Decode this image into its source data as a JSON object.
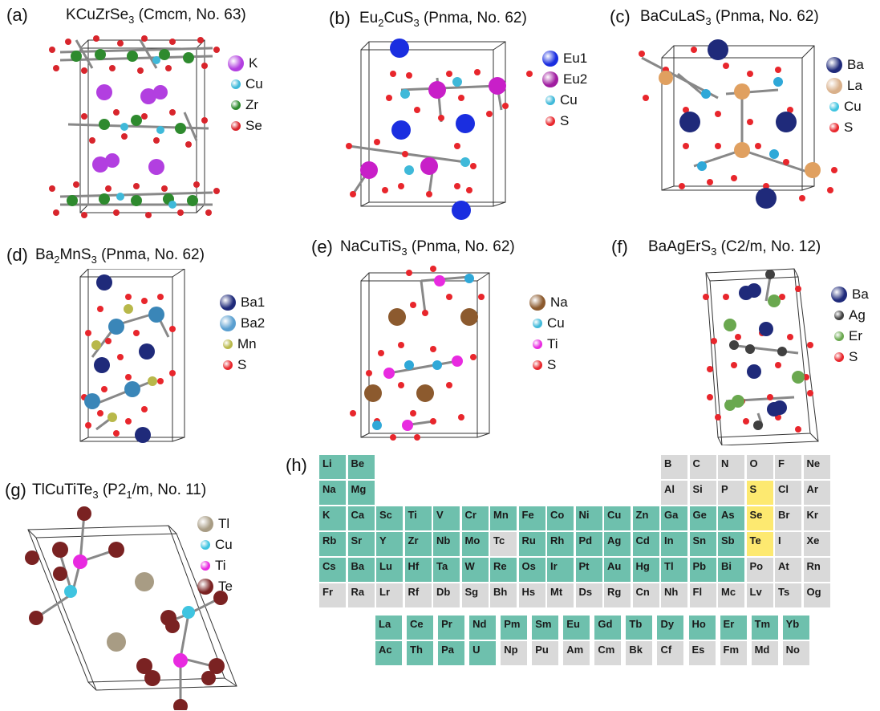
{
  "panels": [
    {
      "id": "a",
      "label": "(a)",
      "formula": [
        [
          "KCuZrSe",
          ""
        ],
        [
          "3",
          "sub"
        ]
      ],
      "space_group": " (Cmcm, No. 63)",
      "legend": [
        {
          "el": "K",
          "color": "#b23fe0"
        },
        {
          "el": "Cu",
          "color": "#3fb9d9"
        },
        {
          "el": "Zr",
          "color": "#2e8a2e"
        },
        {
          "el": "Se",
          "color": "#d8252c"
        }
      ]
    },
    {
      "id": "b",
      "label": "(b)",
      "formula": [
        [
          "Eu",
          ""
        ],
        [
          "2",
          "sub"
        ],
        [
          "CuS",
          ""
        ],
        [
          "3",
          "sub"
        ]
      ],
      "space_group": " (Pnma, No. 62)",
      "legend": [
        {
          "el": "Eu1",
          "color": "#1a2ee0"
        },
        {
          "el": "Eu2",
          "color": "#a01da0"
        },
        {
          "el": "Cu",
          "color": "#3fb9d9"
        },
        {
          "el": "S",
          "color": "#e8262c"
        }
      ]
    },
    {
      "id": "c",
      "label": "(c)",
      "formula": [
        [
          "BaCuLaS",
          ""
        ],
        [
          "3",
          "sub"
        ]
      ],
      "space_group": " (Pnma, No. 62)",
      "legend": [
        {
          "el": "Ba",
          "color": "#1f2a7a"
        },
        {
          "el": "La",
          "color": "#d9b08a"
        },
        {
          "el": "Cu",
          "color": "#3fc4e0"
        },
        {
          "el": "S",
          "color": "#e8262c"
        }
      ]
    },
    {
      "id": "d",
      "label": "(d)",
      "formula": [
        [
          "Ba",
          ""
        ],
        [
          "2",
          "sub"
        ],
        [
          "MnS",
          ""
        ],
        [
          "3",
          "sub"
        ]
      ],
      "space_group": " (Pnma,  No. 62)",
      "legend": [
        {
          "el": "Ba1",
          "color": "#1f2a7a"
        },
        {
          "el": "Ba2",
          "color": "#5a9fd0"
        },
        {
          "el": "Mn",
          "color": "#b8b84a"
        },
        {
          "el": "S",
          "color": "#e8262c"
        }
      ]
    },
    {
      "id": "e",
      "label": "(e)",
      "formula": [
        [
          "NaCuTiS",
          ""
        ],
        [
          "3",
          "sub"
        ]
      ],
      "space_group": " (Pnma, No. 62)",
      "legend": [
        {
          "el": "Na",
          "color": "#8c5a2e"
        },
        {
          "el": "Cu",
          "color": "#3fb9d9"
        },
        {
          "el": "Ti",
          "color": "#e82ae0"
        },
        {
          "el": "S",
          "color": "#e8262c"
        }
      ]
    },
    {
      "id": "f",
      "label": "(f)",
      "formula": [
        [
          "BaAgErS",
          ""
        ],
        [
          "3",
          "sub"
        ]
      ],
      "space_group": " (C2/m, No. 12)",
      "legend": [
        {
          "el": "Ba",
          "color": "#1f2a7a"
        },
        {
          "el": "Ag",
          "color": "#404040"
        },
        {
          "el": "Er",
          "color": "#6aa84f"
        },
        {
          "el": "S",
          "color": "#e8262c"
        }
      ]
    },
    {
      "id": "g",
      "label": "(g)",
      "formula": [
        [
          "TlCuTiTe",
          ""
        ],
        [
          "3",
          "sub"
        ]
      ],
      "space_group": " (P2",
      "space_group_sub": "1",
      "space_group_tail": "/m, No. 11)",
      "legend": [
        {
          "el": "Tl",
          "color": "#a89c84"
        },
        {
          "el": "Cu",
          "color": "#3fc4e0"
        },
        {
          "el": "Ti",
          "color": "#e82ae0"
        },
        {
          "el": "Te",
          "color": "#7a2222"
        }
      ]
    }
  ],
  "periodic_table": {
    "label": "(h)",
    "colors": {
      "teal": "#6ec0ad",
      "gray": "#d9d9d9",
      "yellow": "#fde970"
    },
    "rows": [
      [
        [
          "Li",
          "teal"
        ],
        [
          "Be",
          "teal"
        ],
        null,
        null,
        null,
        null,
        null,
        null,
        null,
        null,
        null,
        null,
        [
          "B",
          "gray"
        ],
        [
          "C",
          "gray"
        ],
        [
          "N",
          "gray"
        ],
        [
          "O",
          "gray"
        ],
        [
          "F",
          "gray"
        ],
        [
          "Ne",
          "gray"
        ]
      ],
      [
        [
          "Na",
          "teal"
        ],
        [
          "Mg",
          "teal"
        ],
        null,
        null,
        null,
        null,
        null,
        null,
        null,
        null,
        null,
        null,
        [
          "Al",
          "gray"
        ],
        [
          "Si",
          "gray"
        ],
        [
          "P",
          "gray"
        ],
        [
          "S",
          "yellow"
        ],
        [
          "Cl",
          "gray"
        ],
        [
          "Ar",
          "gray"
        ]
      ],
      [
        [
          "K",
          "teal"
        ],
        [
          "Ca",
          "teal"
        ],
        [
          "Sc",
          "teal"
        ],
        [
          "Ti",
          "teal"
        ],
        [
          "V",
          "teal"
        ],
        [
          "Cr",
          "teal"
        ],
        [
          "Mn",
          "teal"
        ],
        [
          "Fe",
          "teal"
        ],
        [
          "Co",
          "teal"
        ],
        [
          "Ni",
          "teal"
        ],
        [
          "Cu",
          "teal"
        ],
        [
          "Zn",
          "teal"
        ],
        [
          "Ga",
          "teal"
        ],
        [
          "Ge",
          "teal"
        ],
        [
          "As",
          "teal"
        ],
        [
          "Se",
          "yellow"
        ],
        [
          "Br",
          "gray"
        ],
        [
          "Kr",
          "gray"
        ]
      ],
      [
        [
          "Rb",
          "teal"
        ],
        [
          "Sr",
          "teal"
        ],
        [
          "Y",
          "teal"
        ],
        [
          "Zr",
          "teal"
        ],
        [
          "Nb",
          "teal"
        ],
        [
          "Mo",
          "teal"
        ],
        [
          "Tc",
          "gray"
        ],
        [
          "Ru",
          "teal"
        ],
        [
          "Rh",
          "teal"
        ],
        [
          "Pd",
          "teal"
        ],
        [
          "Ag",
          "teal"
        ],
        [
          "Cd",
          "teal"
        ],
        [
          "In",
          "teal"
        ],
        [
          "Sn",
          "teal"
        ],
        [
          "Sb",
          "teal"
        ],
        [
          "Te",
          "yellow"
        ],
        [
          "I",
          "gray"
        ],
        [
          "Xe",
          "gray"
        ]
      ],
      [
        [
          "Cs",
          "teal"
        ],
        [
          "Ba",
          "teal"
        ],
        [
          "Lu",
          "teal"
        ],
        [
          "Hf",
          "teal"
        ],
        [
          "Ta",
          "teal"
        ],
        [
          "W",
          "teal"
        ],
        [
          "Re",
          "teal"
        ],
        [
          "Os",
          "teal"
        ],
        [
          "Ir",
          "teal"
        ],
        [
          "Pt",
          "teal"
        ],
        [
          "Au",
          "teal"
        ],
        [
          "Hg",
          "teal"
        ],
        [
          "Tl",
          "teal"
        ],
        [
          "Pb",
          "teal"
        ],
        [
          "Bi",
          "teal"
        ],
        [
          "Po",
          "gray"
        ],
        [
          "At",
          "gray"
        ],
        [
          "Rn",
          "gray"
        ]
      ],
      [
        [
          "Fr",
          "gray"
        ],
        [
          "Ra",
          "gray"
        ],
        [
          "Lr",
          "gray"
        ],
        [
          "Rf",
          "gray"
        ],
        [
          "Db",
          "gray"
        ],
        [
          "Sg",
          "gray"
        ],
        [
          "Bh",
          "gray"
        ],
        [
          "Hs",
          "gray"
        ],
        [
          "Mt",
          "gray"
        ],
        [
          "Ds",
          "gray"
        ],
        [
          "Rg",
          "gray"
        ],
        [
          "Cn",
          "gray"
        ],
        [
          "Nh",
          "gray"
        ],
        [
          "Fl",
          "gray"
        ],
        [
          "Mc",
          "gray"
        ],
        [
          "Lv",
          "gray"
        ],
        [
          "Ts",
          "gray"
        ],
        [
          "Og",
          "gray"
        ]
      ]
    ],
    "f_rows": [
      [
        [
          "La",
          "teal"
        ],
        [
          "Ce",
          "teal"
        ],
        [
          "Pr",
          "teal"
        ],
        [
          "Nd",
          "teal"
        ],
        [
          "Pm",
          "teal"
        ],
        [
          "Sm",
          "teal"
        ],
        [
          "Eu",
          "teal"
        ],
        [
          "Gd",
          "teal"
        ],
        [
          "Tb",
          "teal"
        ],
        [
          "Dy",
          "teal"
        ],
        [
          "Ho",
          "teal"
        ],
        [
          "Er",
          "teal"
        ],
        [
          "Tm",
          "teal"
        ],
        [
          "Yb",
          "teal"
        ]
      ],
      [
        [
          "Ac",
          "teal"
        ],
        [
          "Th",
          "teal"
        ],
        [
          "Pa",
          "teal"
        ],
        [
          "U",
          "teal"
        ],
        [
          "Np",
          "gray"
        ],
        [
          "Pu",
          "gray"
        ],
        [
          "Am",
          "gray"
        ],
        [
          "Cm",
          "gray"
        ],
        [
          "Bk",
          "gray"
        ],
        [
          "Cf",
          "gray"
        ],
        [
          "Es",
          "gray"
        ],
        [
          "Fm",
          "gray"
        ],
        [
          "Md",
          "gray"
        ],
        [
          "No",
          "gray"
        ]
      ]
    ]
  }
}
